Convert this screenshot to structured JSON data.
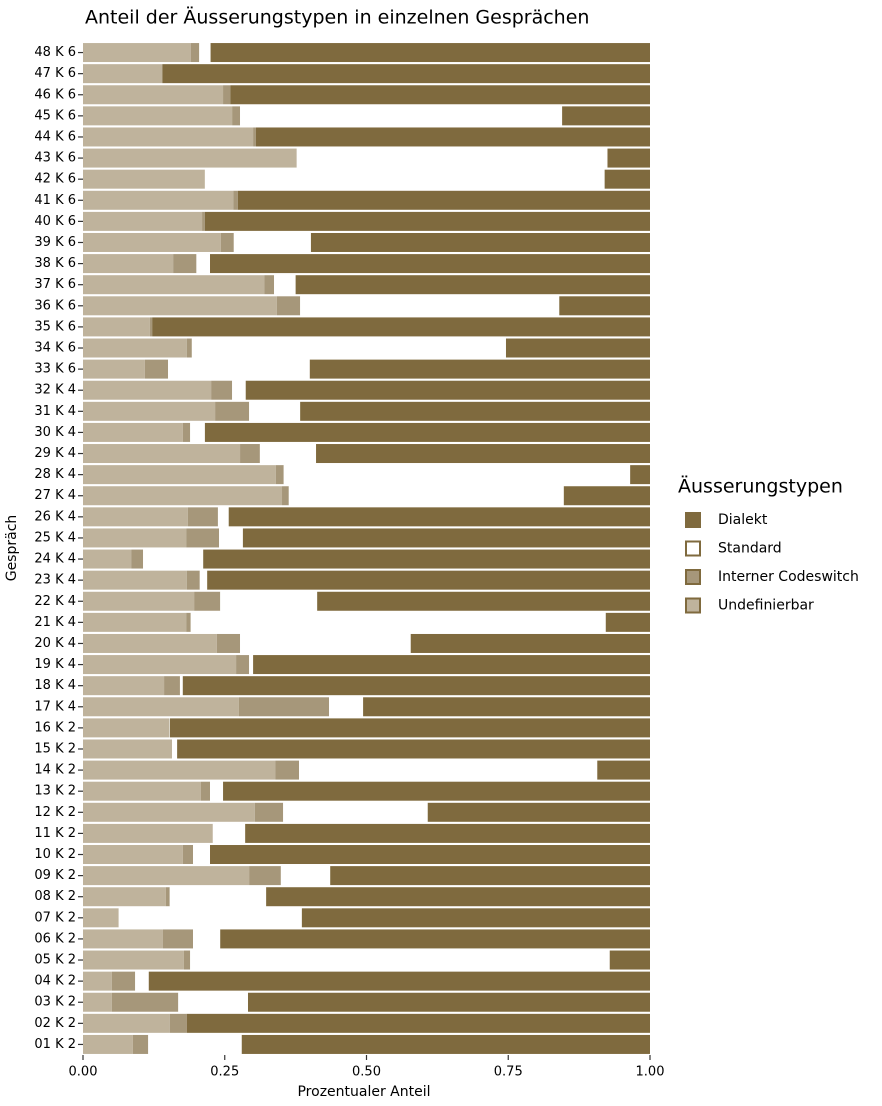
{
  "chart_data": {
    "type": "stacked-barh",
    "title": "Anteil der Äusserungstypen in einzelnen Gesprächen",
    "xlabel": "Prozentualer Anteil",
    "ylabel": "Gespräch",
    "legend_title": "Äusserungstypen",
    "legend": "right",
    "categories": [
      "01 K 2",
      "02 K 2",
      "03 K 2",
      "04 K 2",
      "05 K 2",
      "06 K 2",
      "07 K 2",
      "08 K 2",
      "09 K 2",
      "10 K 2",
      "11 K 2",
      "12 K 2",
      "13 K 2",
      "14 K 2",
      "15 K 2",
      "16 K 2",
      "17 K 4",
      "18 K 4",
      "19 K 4",
      "20 K 4",
      "21 K 4",
      "22 K 4",
      "23 K 4",
      "24 K 4",
      "25 K 4",
      "26 K 4",
      "27 K 4",
      "28 K 4",
      "29 K 4",
      "30 K 4",
      "31 K 4",
      "32 K 4",
      "33 K 6",
      "34 K 6",
      "35 K 6",
      "36 K 6",
      "37 K 6",
      "38 K 6",
      "39 K 6",
      "40 K 6",
      "41 K 6",
      "42 K 6",
      "43 K 6",
      "44 K 6",
      "45 K 6",
      "46 K 6",
      "47 K 6",
      "48 K 6"
    ],
    "series": [
      {
        "name": "Dialekt",
        "color": "#7f6a3e",
        "values": [
          0.72,
          0.817,
          0.709,
          0.884,
          0.071,
          0.758,
          0.614,
          0.677,
          0.564,
          0.776,
          0.714,
          0.392,
          0.753,
          0.093,
          0.834,
          0.847,
          0.506,
          0.824,
          0.7,
          0.422,
          0.078,
          0.587,
          0.781,
          0.788,
          0.718,
          0.743,
          0.152,
          0.035,
          0.589,
          0.785,
          0.617,
          0.713,
          0.6,
          0.254,
          0.878,
          0.16,
          0.625,
          0.776,
          0.598,
          0.785,
          0.727,
          0.08,
          0.075,
          0.695,
          0.155,
          0.74,
          0.86,
          0.775
        ]
      },
      {
        "name": "Standard",
        "color": "#ffffff",
        "values": [
          0.165,
          0,
          0.123,
          0.024,
          0.74,
          0.048,
          0.323,
          0.17,
          0.087,
          0.03,
          0.057,
          0.255,
          0.023,
          0.526,
          0.009,
          0.001,
          0.06,
          0.005,
          0.007,
          0.301,
          0.732,
          0.171,
          0.013,
          0.106,
          0.042,
          0.019,
          0.485,
          0.611,
          0.099,
          0.026,
          0.09,
          0.024,
          0.25,
          0.554,
          0,
          0.457,
          0.038,
          0.024,
          0.136,
          0,
          0,
          0.705,
          0.548,
          0,
          0.568,
          0,
          0,
          0.02
        ]
      },
      {
        "name": "Interner Codeswitch",
        "color": "#a6977a",
        "values": [
          0.027,
          0.03,
          0.117,
          0.041,
          0.011,
          0.053,
          0,
          0.007,
          0.056,
          0.018,
          0,
          0.05,
          0.016,
          0.042,
          0,
          0,
          0.159,
          0.028,
          0.023,
          0.041,
          0.008,
          0.046,
          0.023,
          0.021,
          0.058,
          0.053,
          0.012,
          0.014,
          0.035,
          0.013,
          0.06,
          0.037,
          0.041,
          0.009,
          0.004,
          0.041,
          0.017,
          0.041,
          0.023,
          0.005,
          0.008,
          0,
          0,
          0.005,
          0.014,
          0.013,
          0,
          0.015
        ]
      },
      {
        "name": "Undefinierbar",
        "color": "#bfb39c",
        "values": [
          0.088,
          0.153,
          0.051,
          0.051,
          0.178,
          0.141,
          0.063,
          0.146,
          0.293,
          0.176,
          0.229,
          0.303,
          0.208,
          0.339,
          0.157,
          0.152,
          0.275,
          0.143,
          0.27,
          0.236,
          0.182,
          0.196,
          0.183,
          0.085,
          0.182,
          0.185,
          0.351,
          0.34,
          0.277,
          0.176,
          0.233,
          0.226,
          0.109,
          0.183,
          0.118,
          0.342,
          0.32,
          0.159,
          0.243,
          0.21,
          0.265,
          0.215,
          0.377,
          0.3,
          0.263,
          0.247,
          0.14,
          0.19
        ]
      }
    ],
    "xlim": [
      0,
      1
    ],
    "xticks": [
      {
        "value": 0,
        "label": "0.00"
      },
      {
        "value": 0.25,
        "label": "0.25"
      },
      {
        "value": 0.5,
        "label": "0.50"
      },
      {
        "value": 0.75,
        "label": "0.75"
      },
      {
        "value": 1,
        "label": "1.00"
      }
    ],
    "legend_outline": "#7f6a3e"
  }
}
